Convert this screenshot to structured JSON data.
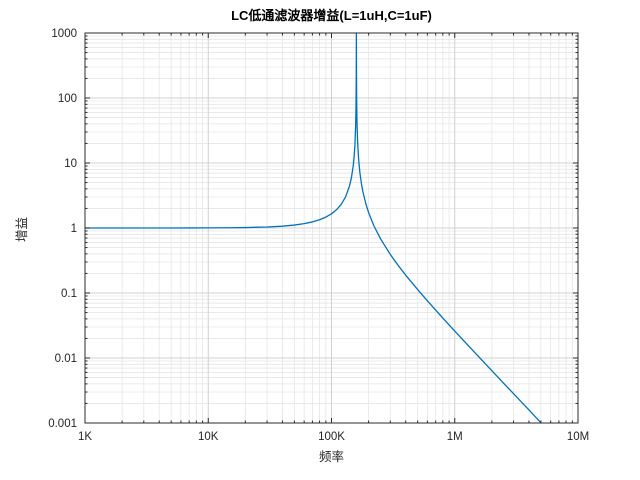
{
  "figure": {
    "background": "#ffffff"
  },
  "chart_data": {
    "type": "line",
    "title": "LC低通滤波器增益(L=1uH,C=1uF)",
    "xlabel": "频率",
    "ylabel": "增益",
    "x_scale": "log",
    "y_scale": "log",
    "xlim": [
      1000,
      10000000
    ],
    "ylim": [
      0.001,
      1000
    ],
    "x_ticks": [
      {
        "value": 1000,
        "label": "1K"
      },
      {
        "value": 10000,
        "label": "10K"
      },
      {
        "value": 100000,
        "label": "100K"
      },
      {
        "value": 1000000,
        "label": "1M"
      },
      {
        "value": 10000000,
        "label": "10M"
      }
    ],
    "y_ticks": [
      {
        "value": 0.001,
        "label": "0.001"
      },
      {
        "value": 0.01,
        "label": "0.01"
      },
      {
        "value": 0.1,
        "label": "0.1"
      },
      {
        "value": 1,
        "label": "1"
      },
      {
        "value": 10,
        "label": "10"
      },
      {
        "value": 100,
        "label": "100"
      },
      {
        "value": 1000,
        "label": "1000"
      }
    ],
    "grid": "major+minor",
    "legend": "none",
    "line_color": "#0072BD",
    "axis_color": "#2b2b2b",
    "tick_label_color": "#262626",
    "major_grid_color": "#d0d0d0",
    "minor_grid_color": "#e6e6e6",
    "series": [
      {
        "name": "gain",
        "points": [
          [
            1000,
            1.0
          ],
          [
            1500,
            1.0001
          ],
          [
            2000,
            1.0002
          ],
          [
            3000,
            1.0004
          ],
          [
            5000,
            1.001
          ],
          [
            7000,
            1.002
          ],
          [
            10000,
            1.004
          ],
          [
            15000,
            1.009
          ],
          [
            20000,
            1.016
          ],
          [
            30000,
            1.037
          ],
          [
            40000,
            1.067
          ],
          [
            50000,
            1.11
          ],
          [
            60000,
            1.166
          ],
          [
            70000,
            1.24
          ],
          [
            80000,
            1.338
          ],
          [
            90000,
            1.47
          ],
          [
            100000,
            1.653
          ],
          [
            110000,
            1.915
          ],
          [
            120000,
            2.318
          ],
          [
            130000,
            3.006
          ],
          [
            140000,
            4.423
          ],
          [
            145000,
            5.89
          ],
          [
            150000,
            8.96
          ],
          [
            153000,
            13.2
          ],
          [
            155000,
            19.47
          ],
          [
            157000,
            37.4
          ],
          [
            158000,
            69.9
          ],
          [
            158800,
            224.5
          ],
          [
            159155,
            1000
          ],
          [
            159500,
            230.4
          ],
          [
            160000,
            93.9
          ],
          [
            161000,
            42.9
          ],
          [
            163000,
            20.45
          ],
          [
            166000,
            11.38
          ],
          [
            170000,
            7.09
          ],
          [
            175000,
            4.78
          ],
          [
            180000,
            3.58
          ],
          [
            190000,
            2.35
          ],
          [
            200000,
            1.727
          ],
          [
            220000,
            1.098
          ],
          [
            250000,
            0.6815
          ],
          [
            300000,
            0.3917
          ],
          [
            350000,
            0.2607
          ],
          [
            400000,
            0.1881
          ],
          [
            500000,
            0.1128
          ],
          [
            600000,
            0.0757
          ],
          [
            800000,
            0.0412
          ],
          [
            1000000,
            0.026
          ],
          [
            1500000,
            0.0114
          ],
          [
            2000000,
            0.00637
          ],
          [
            3000000,
            0.00282
          ],
          [
            4000000,
            0.00159
          ],
          [
            5000000,
            0.00101
          ]
        ]
      }
    ]
  }
}
